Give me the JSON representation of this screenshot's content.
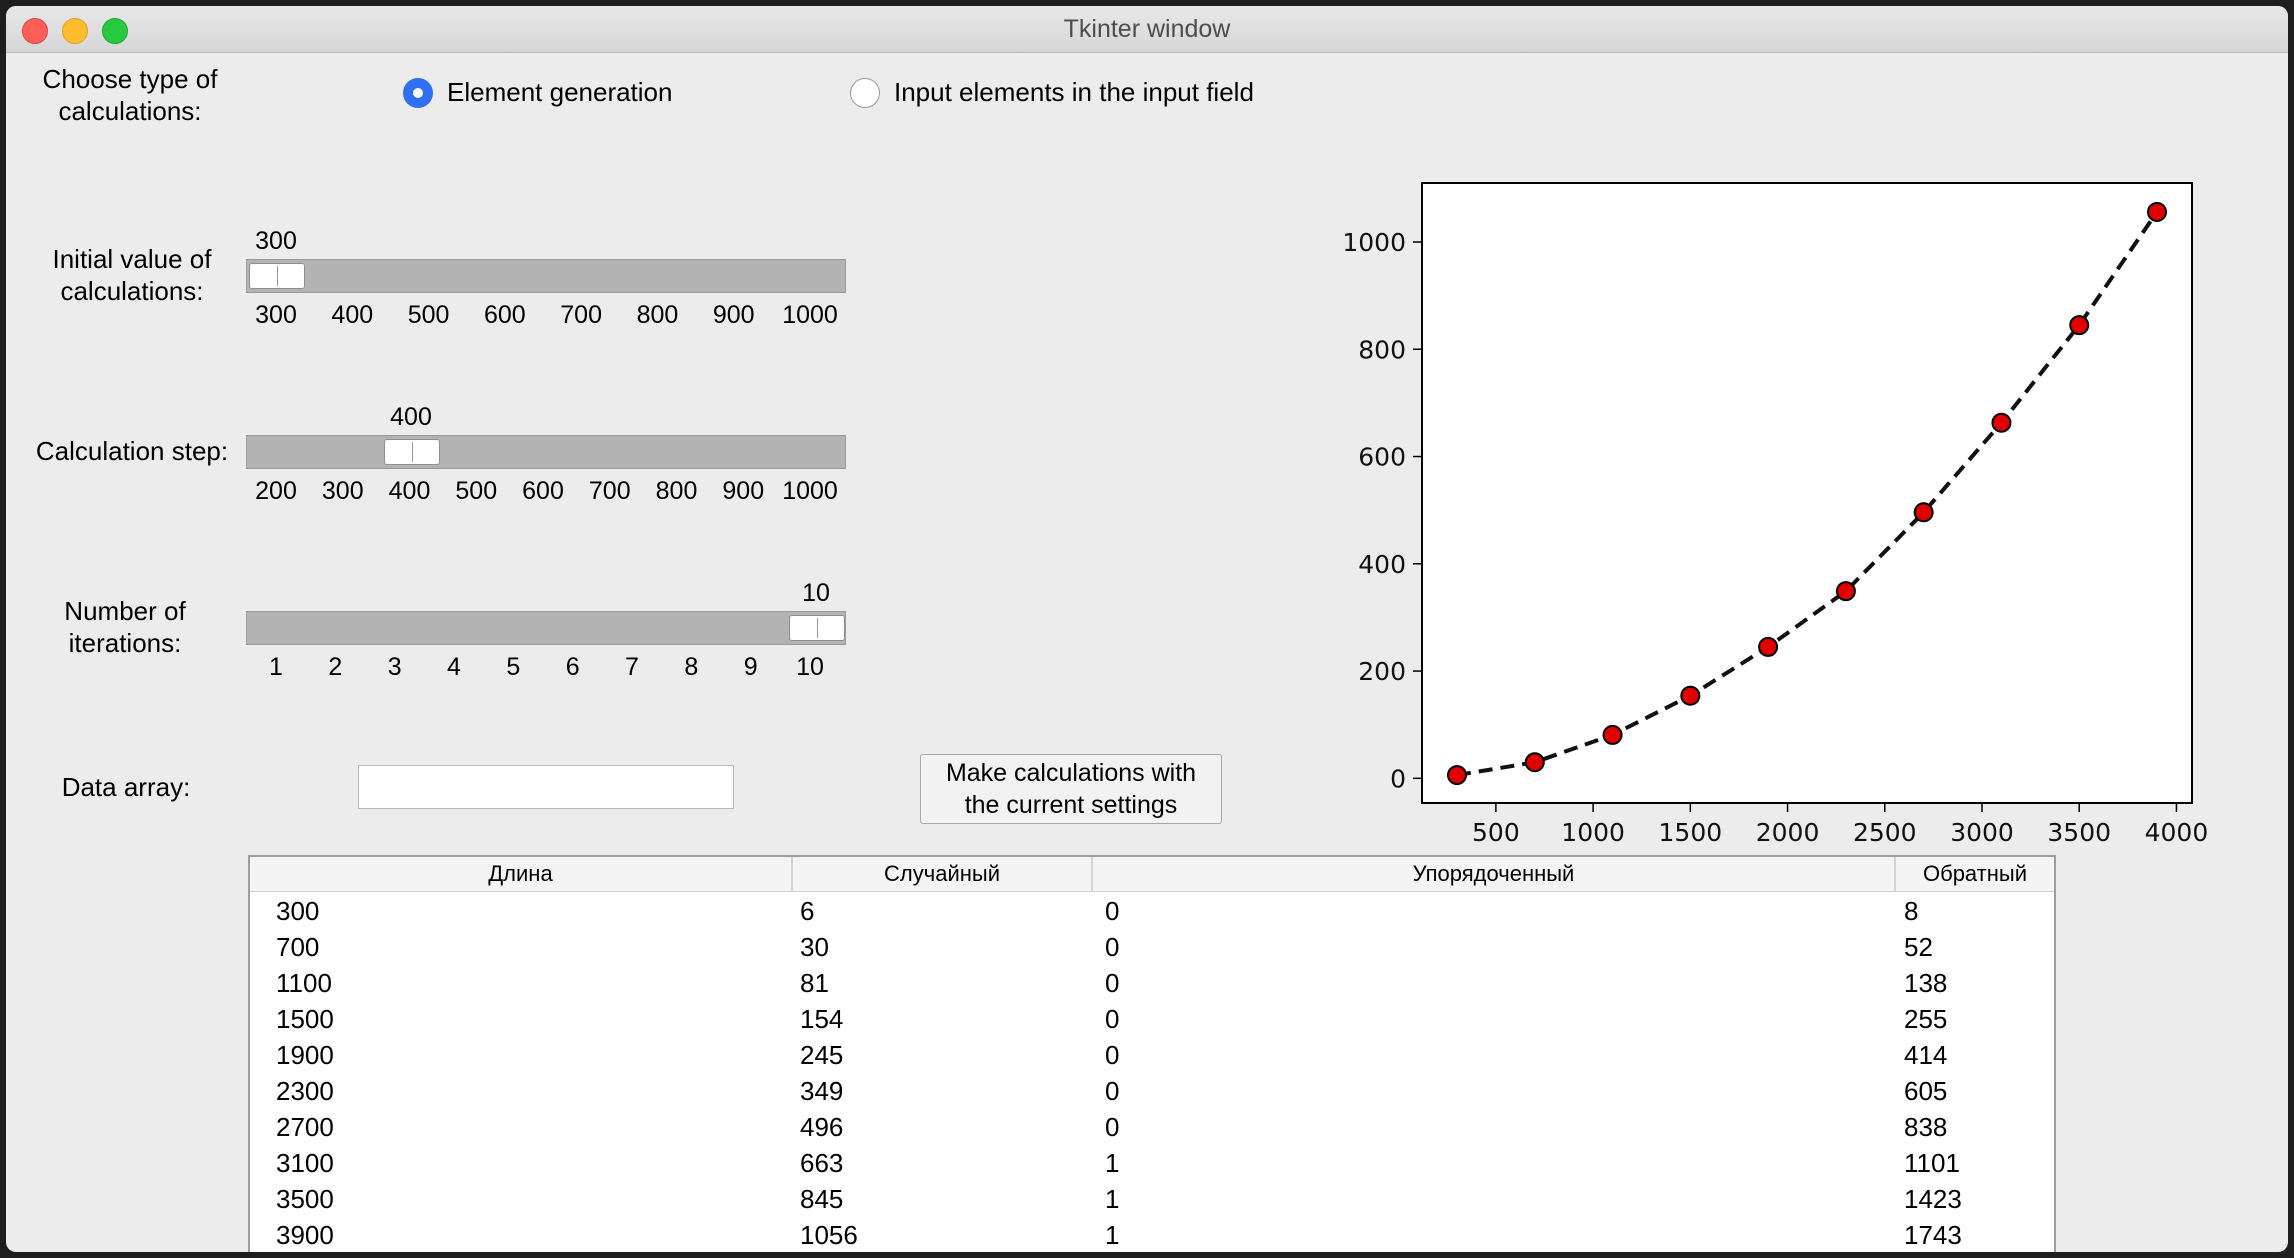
{
  "window": {
    "title": "Tkinter window"
  },
  "calc_type": {
    "label": "Choose type of\ncalculations:",
    "options": [
      {
        "label": "Element generation",
        "selected": true
      },
      {
        "label": "Input elements in the input field",
        "selected": false
      }
    ]
  },
  "sliders": {
    "initial": {
      "label": "Initial value of\ncalculations:",
      "value": "300",
      "value_num": 300,
      "min": 300,
      "max": 1000,
      "ticks": [
        "300",
        "400",
        "500",
        "600",
        "700",
        "800",
        "900",
        "1000"
      ]
    },
    "step": {
      "label": "Calculation step:",
      "value": "400",
      "value_num": 400,
      "min": 200,
      "max": 1000,
      "ticks": [
        "200",
        "300",
        "400",
        "500",
        "600",
        "700",
        "800",
        "900",
        "1000"
      ]
    },
    "iterations": {
      "label": "Number of\niterations:",
      "value": "10",
      "value_num": 10,
      "min": 1,
      "max": 10,
      "ticks": [
        "1",
        "2",
        "3",
        "4",
        "5",
        "6",
        "7",
        "8",
        "9",
        "10"
      ]
    }
  },
  "data_array": {
    "label": "Data array:",
    "value": ""
  },
  "calc_button": {
    "label": "Make calculations with\nthe current settings"
  },
  "chart_data": {
    "type": "line",
    "x": [
      300,
      700,
      1100,
      1500,
      1900,
      2300,
      2700,
      3100,
      3500,
      3900
    ],
    "series": [
      {
        "values": [
          6,
          30,
          81,
          154,
          245,
          349,
          496,
          663,
          845,
          1056
        ]
      }
    ],
    "xticks": [
      "500",
      "1000",
      "1500",
      "2000",
      "2500",
      "3000",
      "3500",
      "4000"
    ],
    "yticks": [
      "0",
      "200",
      "400",
      "600",
      "800",
      "1000"
    ],
    "xlim": [
      120,
      4080
    ],
    "ylim": [
      -46,
      1110
    ],
    "line_style": "dashed",
    "line_color": "#111111",
    "marker_color": "#e00000",
    "grid": false
  },
  "table": {
    "columns": [
      "Длина",
      "Случайный",
      "Упорядоченный",
      "Обратный"
    ],
    "rows": [
      [
        "300",
        "6",
        "0",
        "8"
      ],
      [
        "700",
        "30",
        "0",
        "52"
      ],
      [
        "1100",
        "81",
        "0",
        "138"
      ],
      [
        "1500",
        "154",
        "0",
        "255"
      ],
      [
        "1900",
        "245",
        "0",
        "414"
      ],
      [
        "2300",
        "349",
        "0",
        "605"
      ],
      [
        "2700",
        "496",
        "0",
        "838"
      ],
      [
        "3100",
        "663",
        "1",
        "1101"
      ],
      [
        "3500",
        "845",
        "1",
        "1423"
      ],
      [
        "3900",
        "1056",
        "1",
        "1743"
      ]
    ]
  }
}
